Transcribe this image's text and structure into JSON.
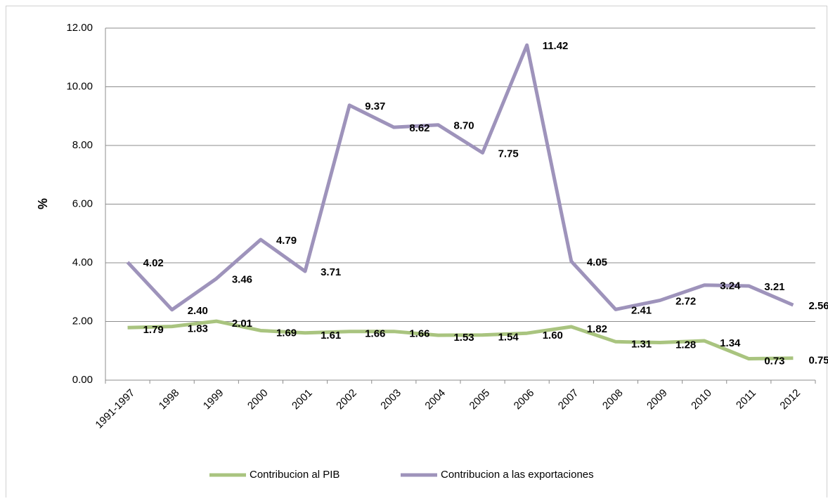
{
  "chart_data": {
    "type": "line",
    "ylabel": "%",
    "categories": [
      "1991-1997",
      "1998",
      "1999",
      "2000",
      "2001",
      "2002",
      "2003",
      "2004",
      "2005",
      "2006",
      "2007",
      "2008",
      "2009",
      "2010",
      "2011",
      "2012"
    ],
    "series": [
      {
        "name": "Contribucion al PIB",
        "color": "#a9c47f",
        "values": [
          1.79,
          1.83,
          2.01,
          1.69,
          1.61,
          1.66,
          1.66,
          1.53,
          1.54,
          1.6,
          1.82,
          1.31,
          1.28,
          1.34,
          0.73,
          0.75
        ],
        "value_labels": [
          "1.79",
          "1.83",
          "2.01",
          "1.69",
          "1.61",
          "1.66",
          "1.66",
          "1.53",
          "1.54",
          "1.60",
          "1.82",
          "1.31",
          "1.28",
          "1.34",
          "0.73",
          "0.75"
        ]
      },
      {
        "name": "Contribucion a las exportaciones",
        "color": "#9e93bb",
        "values": [
          4.02,
          2.4,
          3.46,
          4.79,
          3.71,
          9.37,
          8.62,
          8.7,
          7.75,
          11.42,
          4.05,
          2.41,
          2.72,
          3.24,
          3.21,
          2.56
        ],
        "value_labels": [
          "4.02",
          "2.40",
          "3.46",
          "4.79",
          "3.71",
          "9.37",
          "8.62",
          "8.70",
          "7.75",
          "11.42",
          "4.05",
          "2.41",
          "2.72",
          "3.24",
          "3.21",
          "2.56"
        ]
      }
    ],
    "ylim": [
      0,
      12
    ],
    "yticks": [
      {
        "value": 0,
        "label": "0.00"
      },
      {
        "value": 2,
        "label": "2.00"
      },
      {
        "value": 4,
        "label": "4.00"
      },
      {
        "value": 6,
        "label": "6.00"
      },
      {
        "value": 8,
        "label": "8.00"
      },
      {
        "value": 10,
        "label": "10.00"
      },
      {
        "value": 12,
        "label": "12.00"
      }
    ],
    "grid": true,
    "legend": "bottom"
  }
}
